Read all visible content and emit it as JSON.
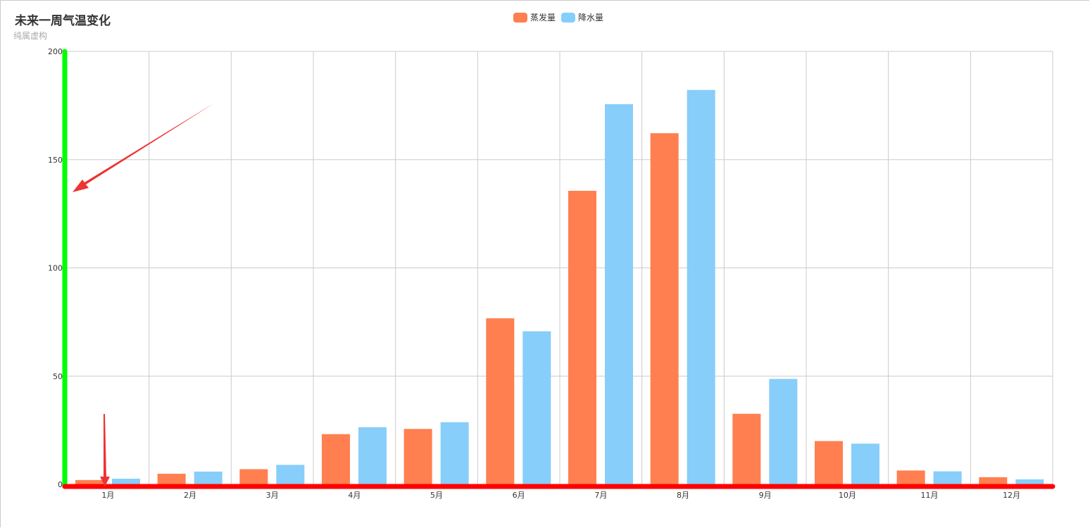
{
  "chart_data": {
    "type": "bar",
    "title": "未来一周气温变化",
    "subtitle": "纯属虚构",
    "categories": [
      "1月",
      "2月",
      "3月",
      "4月",
      "5月",
      "6月",
      "7月",
      "8月",
      "9月",
      "10月",
      "11月",
      "12月"
    ],
    "series": [
      {
        "name": "蒸发量",
        "color": "#ff7f50",
        "values": [
          2.0,
          4.9,
          7.0,
          23.2,
          25.6,
          76.7,
          135.6,
          162.2,
          32.6,
          20.0,
          6.4,
          3.3
        ]
      },
      {
        "name": "降水量",
        "color": "#87cefa",
        "values": [
          2.6,
          5.9,
          9.0,
          26.4,
          28.7,
          70.7,
          175.6,
          182.2,
          48.7,
          18.8,
          6.0,
          2.3
        ]
      }
    ],
    "ylim": [
      0,
      200
    ],
    "yticks": [
      0,
      50,
      100,
      150,
      200
    ],
    "grid": true,
    "legend_position": "top-center",
    "annotation_colors": {
      "y_axis_highlight": "#00ff00",
      "x_axis_highlight": "#ff0000",
      "arrow": "#ee3333"
    }
  }
}
